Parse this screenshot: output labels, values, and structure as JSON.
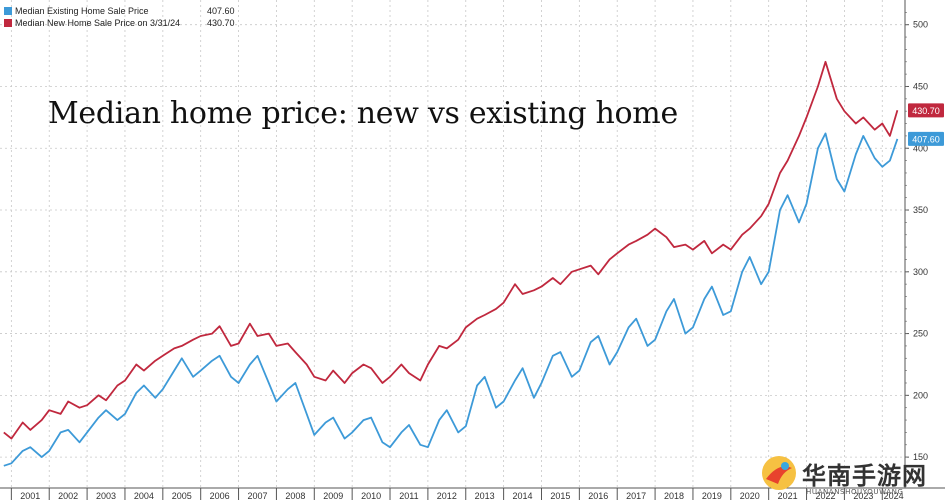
{
  "chart_data": {
    "type": "line",
    "title": "Median home price: new vs existing home",
    "x_tick_labels": [
      "2001",
      "2002",
      "2003",
      "2004",
      "2005",
      "2006",
      "2007",
      "2008",
      "2009",
      "2010",
      "2011",
      "2012",
      "2013",
      "2014",
      "2015",
      "2016",
      "2017",
      "2018",
      "2019",
      "2020",
      "2021",
      "2022",
      "2023",
      "2024"
    ],
    "y_tick_labels": [
      150,
      200,
      250,
      300,
      350,
      400,
      450,
      500
    ],
    "xlim": [
      2000.7,
      2024.6
    ],
    "ylim": [
      125,
      520
    ],
    "grid": true,
    "legend_position": "top-left",
    "series": [
      {
        "name": "Median Existing Home Sale Price",
        "last_value": "407.60",
        "color": "#3d9ad8",
        "x": [
          2000.8,
          2001.0,
          2001.3,
          2001.5,
          2001.8,
          2002.0,
          2002.3,
          2002.5,
          2002.8,
          2003.0,
          2003.3,
          2003.5,
          2003.8,
          2004.0,
          2004.3,
          2004.5,
          2004.8,
          2005.0,
          2005.3,
          2005.5,
          2005.8,
          2006.0,
          2006.3,
          2006.5,
          2006.8,
          2007.0,
          2007.3,
          2007.5,
          2007.8,
          2008.0,
          2008.3,
          2008.5,
          2008.8,
          2009.0,
          2009.3,
          2009.5,
          2009.8,
          2010.0,
          2010.3,
          2010.5,
          2010.8,
          2011.0,
          2011.3,
          2011.5,
          2011.8,
          2012.0,
          2012.3,
          2012.5,
          2012.8,
          2013.0,
          2013.3,
          2013.5,
          2013.8,
          2014.0,
          2014.3,
          2014.5,
          2014.8,
          2015.0,
          2015.3,
          2015.5,
          2015.8,
          2016.0,
          2016.3,
          2016.5,
          2016.8,
          2017.0,
          2017.3,
          2017.5,
          2017.8,
          2018.0,
          2018.3,
          2018.5,
          2018.8,
          2019.0,
          2019.3,
          2019.5,
          2019.8,
          2020.0,
          2020.3,
          2020.5,
          2020.8,
          2021.0,
          2021.3,
          2021.5,
          2021.8,
          2022.0,
          2022.3,
          2022.5,
          2022.8,
          2023.0,
          2023.3,
          2023.5,
          2023.8,
          2024.0,
          2024.2,
          2024.4
        ],
        "values": [
          143,
          145,
          155,
          158,
          150,
          155,
          170,
          172,
          162,
          170,
          182,
          188,
          180,
          185,
          202,
          208,
          198,
          205,
          220,
          230,
          215,
          220,
          228,
          232,
          215,
          210,
          225,
          232,
          210,
          195,
          205,
          210,
          185,
          168,
          178,
          182,
          165,
          170,
          180,
          182,
          162,
          158,
          170,
          176,
          160,
          158,
          180,
          188,
          170,
          175,
          208,
          215,
          190,
          195,
          212,
          222,
          198,
          210,
          232,
          235,
          215,
          220,
          243,
          248,
          225,
          235,
          255,
          262,
          240,
          245,
          268,
          278,
          250,
          255,
          278,
          288,
          265,
          268,
          300,
          312,
          290,
          300,
          350,
          362,
          340,
          355,
          400,
          412,
          375,
          365,
          395,
          410,
          392,
          385,
          390,
          407.6
        ]
      },
      {
        "name": "Median New Home Sale Price on 3/31/24",
        "last_value": "430.70",
        "color": "#c0283e",
        "x": [
          2000.8,
          2001.0,
          2001.3,
          2001.5,
          2001.8,
          2002.0,
          2002.3,
          2002.5,
          2002.8,
          2003.0,
          2003.3,
          2003.5,
          2003.8,
          2004.0,
          2004.3,
          2004.5,
          2004.8,
          2005.0,
          2005.3,
          2005.5,
          2005.8,
          2006.0,
          2006.3,
          2006.5,
          2006.8,
          2007.0,
          2007.3,
          2007.5,
          2007.8,
          2008.0,
          2008.3,
          2008.5,
          2008.8,
          2009.0,
          2009.3,
          2009.5,
          2009.8,
          2010.0,
          2010.3,
          2010.5,
          2010.8,
          2011.0,
          2011.3,
          2011.5,
          2011.8,
          2012.0,
          2012.3,
          2012.5,
          2012.8,
          2013.0,
          2013.3,
          2013.5,
          2013.8,
          2014.0,
          2014.3,
          2014.5,
          2014.8,
          2015.0,
          2015.3,
          2015.5,
          2015.8,
          2016.0,
          2016.3,
          2016.5,
          2016.8,
          2017.0,
          2017.3,
          2017.5,
          2017.8,
          2018.0,
          2018.3,
          2018.5,
          2018.8,
          2019.0,
          2019.3,
          2019.5,
          2019.8,
          2020.0,
          2020.3,
          2020.5,
          2020.8,
          2021.0,
          2021.3,
          2021.5,
          2021.8,
          2022.0,
          2022.3,
          2022.5,
          2022.8,
          2023.0,
          2023.3,
          2023.5,
          2023.8,
          2024.0,
          2024.2,
          2024.4
        ],
        "values": [
          170,
          165,
          178,
          172,
          180,
          188,
          185,
          195,
          190,
          192,
          200,
          196,
          208,
          212,
          225,
          220,
          228,
          232,
          238,
          240,
          245,
          248,
          250,
          256,
          240,
          242,
          258,
          248,
          250,
          240,
          242,
          235,
          225,
          215,
          212,
          220,
          210,
          218,
          225,
          222,
          210,
          215,
          225,
          218,
          212,
          225,
          240,
          238,
          245,
          255,
          262,
          265,
          270,
          275,
          290,
          282,
          285,
          288,
          295,
          290,
          300,
          302,
          305,
          298,
          310,
          315,
          322,
          325,
          330,
          335,
          328,
          320,
          322,
          318,
          325,
          315,
          322,
          318,
          330,
          335,
          345,
          355,
          380,
          390,
          410,
          425,
          450,
          470,
          440,
          430,
          420,
          425,
          415,
          420,
          410,
          430.7
        ]
      }
    ]
  },
  "watermark": {
    "text": "华南手游网",
    "subtext": "HUANANSHOUYOUWANG"
  }
}
